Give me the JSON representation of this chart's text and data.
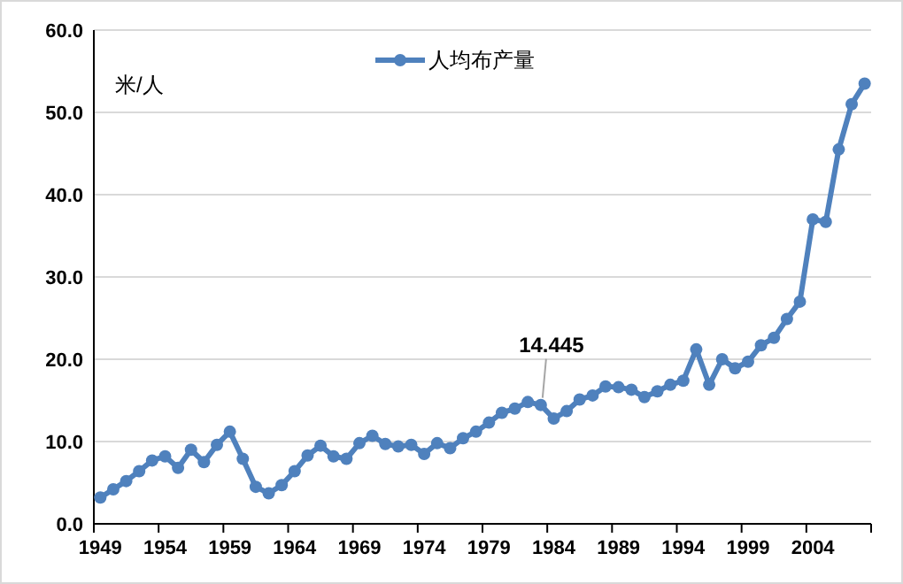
{
  "chart_data": {
    "type": "line",
    "ylabel": "米/人",
    "legend": "top",
    "grid": "y",
    "marker": "circle",
    "line_style": "solid",
    "categories": [
      "1949",
      null,
      null,
      null,
      null,
      "1954",
      null,
      null,
      null,
      null,
      "1959",
      null,
      null,
      null,
      null,
      "1964",
      null,
      null,
      null,
      null,
      "1969",
      null,
      null,
      null,
      null,
      "1974",
      null,
      null,
      null,
      null,
      "1979",
      null,
      null,
      null,
      null,
      "1984",
      null,
      null,
      null,
      null,
      "1989",
      null,
      null,
      null,
      null,
      "1994",
      null,
      null,
      null,
      null,
      "1999",
      null,
      null,
      null,
      null,
      "2004",
      null,
      null,
      null,
      null
    ],
    "ylim": [
      0,
      60
    ],
    "yticks": [
      {
        "value": 0,
        "label": "0.0"
      },
      {
        "value": 10,
        "label": "10.0"
      },
      {
        "value": 20,
        "label": "20.0"
      },
      {
        "value": 30,
        "label": "30.0"
      },
      {
        "value": 40,
        "label": "40.0"
      },
      {
        "value": 50,
        "label": "50.0"
      },
      {
        "value": 60,
        "label": "60.0"
      }
    ],
    "series": [
      {
        "name": "人均布产量",
        "color": "#4f81bd",
        "values": [
          3.2,
          4.2,
          5.2,
          6.4,
          7.7,
          8.2,
          6.8,
          9.0,
          7.5,
          9.6,
          11.2,
          7.9,
          4.5,
          3.7,
          4.7,
          6.4,
          8.3,
          9.5,
          8.2,
          7.9,
          9.8,
          10.7,
          9.7,
          9.4,
          9.6,
          8.5,
          9.8,
          9.2,
          10.4,
          11.2,
          12.3,
          13.5,
          14.0,
          14.8,
          14.445,
          12.8,
          13.7,
          15.1,
          15.6,
          16.7,
          16.6,
          16.3,
          15.4,
          16.1,
          16.9,
          17.4,
          21.2,
          16.9,
          20.0,
          18.9,
          19.7,
          21.7,
          22.6,
          24.9,
          27.0,
          37.0,
          36.7,
          45.5,
          51.0,
          53.5
        ],
        "value_labels": [
          null,
          null,
          null,
          null,
          null,
          null,
          null,
          null,
          null,
          null,
          null,
          null,
          null,
          null,
          null,
          null,
          null,
          null,
          null,
          null,
          null,
          null,
          null,
          null,
          null,
          null,
          null,
          null,
          null,
          null,
          null,
          null,
          null,
          null,
          "14.445",
          null,
          null,
          null,
          null,
          null,
          null,
          null,
          null,
          null,
          null,
          null,
          null,
          null,
          null,
          null,
          null,
          null,
          null,
          null,
          null,
          null,
          null,
          null,
          null,
          null
        ]
      }
    ]
  }
}
